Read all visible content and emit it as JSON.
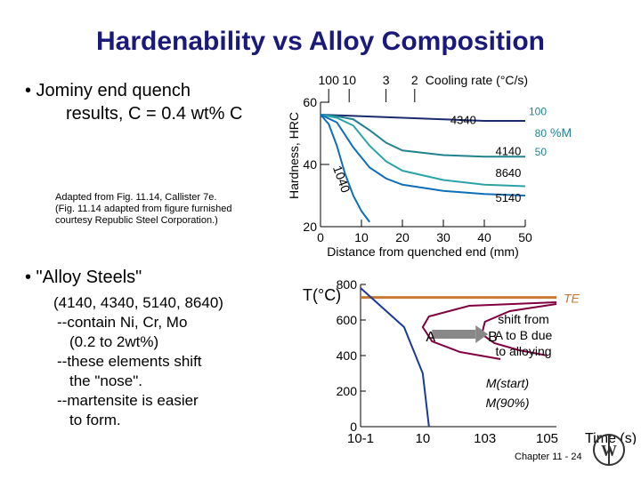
{
  "slide": {
    "title": "Hardenability vs Alloy Composition",
    "bullet1_line1": "• Jominy end quench",
    "bullet1_line2": "results, C = 0.4 wt% C",
    "credit": [
      "Adapted from Fig. 11.14, Callister 7e.",
      "(Fig. 11.14 adapted from figure furnished",
      "courtesy Republic Steel Corporation.)"
    ],
    "bullet2": "• \"Alloy Steels\"",
    "bullet2_lines": [
      "(4140, 4340, 5140, 8640)",
      "--contain Ni, Cr, Mo",
      "(0.2 to 2wt%)",
      "--these elements shift",
      "the \"nose\".",
      "--martensite is easier",
      "to form."
    ],
    "footer": "Chapter 11 - 24",
    "logo_text": "W"
  },
  "chart_data": [
    {
      "type": "line",
      "ylabel": "Hardness, HRC",
      "xlabel_line1": "Distance from quenched end (mm)",
      "xlim": [
        0,
        50
      ],
      "ylim": [
        20,
        60
      ],
      "x_ticks": [
        "0",
        "10",
        "20",
        "30",
        "40",
        "50"
      ],
      "y_ticks": [
        "20",
        "40",
        "60"
      ],
      "top_axis_label": "Cooling rate (°C/s)",
      "top_ticks": [
        {
          "label": "100",
          "x": 2
        },
        {
          "label": "10",
          "x": 7
        },
        {
          "label": "3",
          "x": 16
        },
        {
          "label": "2",
          "x": 23
        }
      ],
      "martensite_label": "%M",
      "martensite_marks": [
        {
          "label": "100",
          "y": 57
        },
        {
          "label": "80",
          "y": 50
        },
        {
          "label": "50",
          "y": 44
        }
      ],
      "series": [
        {
          "name": "4340",
          "color": "#1a2a6e",
          "x": [
            0,
            10,
            20,
            30,
            40,
            50
          ],
          "y": [
            56,
            55.5,
            55,
            54.5,
            54,
            54
          ]
        },
        {
          "name": "4140",
          "color": "#20838f",
          "x": [
            0,
            4,
            8,
            12,
            16,
            20,
            30,
            40,
            50
          ],
          "y": [
            56,
            55.5,
            54.5,
            51,
            47,
            44.5,
            43,
            42.5,
            42.5
          ]
        },
        {
          "name": "8640",
          "color": "#2aa3a8",
          "x": [
            0,
            4,
            8,
            12,
            16,
            20,
            30,
            40,
            50
          ],
          "y": [
            56,
            55,
            52.5,
            46,
            41,
            38,
            35,
            33.5,
            33
          ]
        },
        {
          "name": "5140",
          "color": "#0d6fb8",
          "x": [
            0,
            4,
            8,
            12,
            16,
            20,
            30,
            40,
            50
          ],
          "y": [
            56,
            53.5,
            45.5,
            39,
            35.5,
            33.5,
            31.5,
            30.5,
            30
          ]
        },
        {
          "name": "1040",
          "color": "#0d6fb8",
          "x": [
            0,
            2,
            4,
            6,
            8,
            10,
            12
          ],
          "y": [
            56,
            53,
            46,
            37,
            30,
            25,
            21.5
          ]
        }
      ]
    },
    {
      "type": "line",
      "ylabel": "T(°C)",
      "xlabel": "Time (s)",
      "x_ticks": [
        "10-1",
        "10",
        "103",
        "105"
      ],
      "y_ticks": [
        "0",
        "200",
        "400",
        "600",
        "800"
      ],
      "ylim": [
        0,
        800
      ],
      "xscale": "log",
      "annotations": {
        "TE": "TE",
        "A": "A",
        "B": "B",
        "shift": [
          "shift from",
          "A to B due",
          "to alloying"
        ],
        "ms": "M(start)",
        "m90": "M(90%)"
      },
      "series": [
        {
          "name": "TE",
          "color": "#c87830",
          "points": [
            [
              -1,
              727
            ],
            [
              5.3,
              727
            ]
          ]
        },
        {
          "name": "nose A",
          "color": "#800040",
          "points": [
            [
              5.3,
              700
            ],
            [
              2.5,
              680
            ],
            [
              1.2,
              620
            ],
            [
              1.0,
              560
            ],
            [
              1.3,
              480
            ],
            [
              2.2,
              420
            ],
            [
              3.5,
              380
            ]
          ]
        },
        {
          "name": "nose B",
          "color": "#800040",
          "points": [
            [
              5.3,
              690
            ],
            [
              3.8,
              650
            ],
            [
              3.0,
              590
            ],
            [
              2.9,
              520
            ],
            [
              3.3,
              470
            ],
            [
              4.1,
              430
            ],
            [
              5.0,
              400
            ]
          ]
        },
        {
          "name": "cooling",
          "color": "#1a3a9a",
          "points": [
            [
              -1,
              780
            ],
            [
              0.4,
              560
            ],
            [
              1.0,
              300
            ],
            [
              1.2,
              0
            ]
          ]
        }
      ]
    }
  ]
}
